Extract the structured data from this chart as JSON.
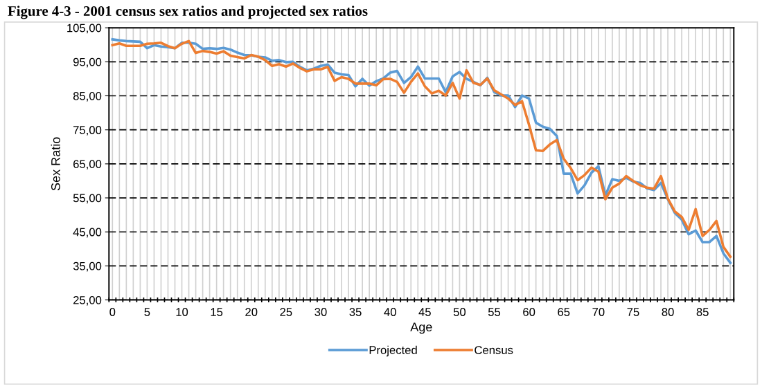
{
  "chart_data": {
    "type": "line",
    "title": "Figure 4-3 - 2001 census sex ratios and projected sex ratios",
    "xlabel": "Age",
    "ylabel": "Sex Ratio",
    "categories": [
      "0",
      null,
      null,
      null,
      null,
      "5",
      null,
      null,
      null,
      null,
      "10",
      null,
      null,
      null,
      null,
      "15",
      null,
      null,
      null,
      null,
      "20",
      null,
      null,
      null,
      null,
      "25",
      null,
      null,
      null,
      null,
      "30",
      null,
      null,
      null,
      null,
      "35",
      null,
      null,
      null,
      null,
      "40",
      null,
      null,
      null,
      null,
      "45",
      null,
      null,
      null,
      null,
      "50",
      null,
      null,
      null,
      null,
      "55",
      null,
      null,
      null,
      null,
      "60",
      null,
      null,
      null,
      null,
      "65",
      null,
      null,
      null,
      null,
      "70",
      null,
      null,
      null,
      null,
      "75",
      null,
      null,
      null,
      null,
      "80",
      null,
      null,
      null,
      null,
      "85",
      null,
      null,
      null,
      null
    ],
    "series": [
      {
        "name": "Projected",
        "color": "#5b9bd5",
        "values": [
          101.6,
          101.3,
          101.1,
          101.0,
          100.9,
          99.0,
          99.9,
          99.5,
          99.3,
          99.0,
          100.6,
          100.6,
          100.3,
          98.8,
          99.0,
          98.8,
          99.1,
          98.6,
          97.7,
          97.0,
          96.9,
          96.5,
          96.3,
          95.3,
          95.5,
          94.9,
          95.0,
          93.5,
          92.5,
          93.0,
          93.8,
          94.2,
          91.8,
          91.3,
          91.1,
          87.8,
          90.0,
          88.0,
          89.3,
          90.1,
          91.8,
          92.3,
          88.8,
          90.5,
          93.6,
          90.1,
          90.1,
          90.1,
          86.1,
          90.7,
          92.0,
          90.0,
          89.1,
          88.1,
          90.3,
          86.1,
          85.1,
          85.1,
          81.7,
          85.1,
          84.2,
          77.1,
          75.9,
          75.3,
          73.2,
          62.1,
          62.1,
          56.3,
          58.7,
          62.4,
          64.3,
          55.7,
          60.5,
          60.0,
          60.9,
          59.8,
          59.4,
          57.8,
          57.3,
          59.4,
          54.6,
          50.6,
          48.6,
          44.3,
          45.4,
          42.0,
          42.0,
          43.8,
          38.7,
          35.9
        ]
      },
      {
        "name": "Census",
        "color": "#ed7d31",
        "values": [
          99.9,
          100.4,
          99.7,
          99.7,
          99.7,
          100.3,
          100.4,
          100.6,
          99.6,
          99.0,
          100.3,
          101.1,
          97.6,
          98.2,
          97.9,
          97.4,
          98.1,
          96.8,
          96.4,
          96.0,
          97.0,
          96.5,
          95.5,
          93.8,
          94.3,
          93.6,
          94.5,
          93.2,
          92.2,
          92.8,
          92.8,
          93.5,
          89.4,
          90.5,
          90.0,
          88.6,
          88.6,
          88.6,
          88.1,
          89.9,
          90.0,
          89.1,
          85.9,
          89.1,
          91.6,
          87.8,
          85.7,
          86.5,
          85.1,
          88.8,
          84.2,
          92.5,
          88.8,
          88.2,
          90.1,
          86.6,
          85.4,
          84.2,
          82.3,
          83.4,
          76.5,
          69.0,
          68.8,
          70.7,
          72.0,
          66.5,
          63.8,
          60.2,
          61.7,
          63.9,
          62.7,
          54.6,
          58.0,
          59.2,
          61.4,
          60.0,
          58.7,
          58.0,
          57.7,
          61.4,
          54.8,
          51.0,
          49.4,
          45.6,
          51.7,
          43.8,
          45.6,
          48.2,
          40.6,
          37.7
        ]
      }
    ],
    "ylim": [
      25,
      105
    ],
    "yticks": [
      {
        "value": 25,
        "label": "25,00"
      },
      {
        "value": 35,
        "label": "35,00"
      },
      {
        "value": 45,
        "label": "45,00"
      },
      {
        "value": 55,
        "label": "55,00"
      },
      {
        "value": 65,
        "label": "65,00"
      },
      {
        "value": 75,
        "label": "75,00"
      },
      {
        "value": 85,
        "label": "85,00"
      },
      {
        "value": 95,
        "label": "95,00"
      },
      {
        "value": 105,
        "label": "105,00"
      }
    ],
    "grid": true,
    "legend": "bottom",
    "line_style": "solid",
    "marker": "none"
  }
}
